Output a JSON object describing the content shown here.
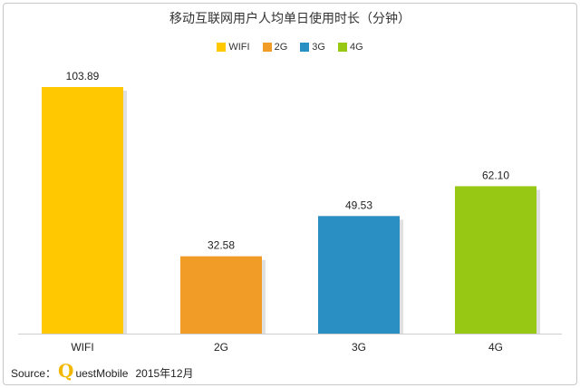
{
  "chart_data": {
    "type": "bar",
    "title": "移动互联网用户人均单日使用时长（分钟）",
    "categories": [
      "WIFI",
      "2G",
      "3G",
      "4G"
    ],
    "values": [
      103.89,
      32.58,
      49.53,
      62.1
    ],
    "value_labels": [
      "103.89",
      "32.58",
      "49.53",
      "62.10"
    ],
    "legend": [
      "WIFI",
      "2G",
      "3G",
      "4G"
    ],
    "colors": [
      "#ffc800",
      "#f29c28",
      "#2a8fc2",
      "#97c814"
    ],
    "xlabel": "",
    "ylabel": "",
    "ylim": [
      0,
      110
    ],
    "grid": false,
    "legend_position": "top-center"
  },
  "source": {
    "prefix": "Source：",
    "logo_letter": "Q",
    "brand_rest": "uestMobile",
    "date": "2015年12月"
  }
}
